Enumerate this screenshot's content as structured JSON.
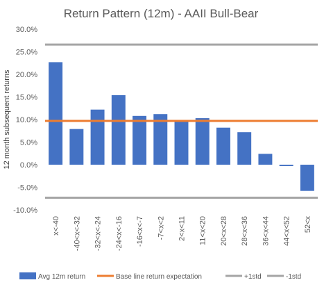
{
  "chart_data": {
    "type": "bar",
    "title": "Return Pattern (12m) - AAII Bull-Bear",
    "xlabel": "",
    "ylabel": "12 month subsequent returns",
    "categories": [
      "x<-40",
      "-40<x<-32",
      "-32<x<-24",
      "-24<x<-16",
      "-16<x<-7",
      "-7<x<2",
      "2<x<11",
      "11<x<20",
      "20<x<28",
      "28<x<36",
      "36<x<44",
      "44<x<52",
      "52<x"
    ],
    "ylim": [
      -10.0,
      30.0
    ],
    "yticks": [
      30.0,
      25.0,
      20.0,
      15.0,
      10.0,
      5.0,
      0.0,
      -5.0,
      -10.0
    ],
    "ytick_labels": [
      "30.0%",
      "25.0%",
      "20.0%",
      "15.0%",
      "10.0%",
      "5.0%",
      "0.0%",
      "-5.0%",
      "-10.0%"
    ],
    "series": [
      {
        "name": "Avg 12m return",
        "kind": "bar",
        "color": "#4472C4",
        "values": [
          22.7,
          7.9,
          12.2,
          15.4,
          10.8,
          11.2,
          9.5,
          10.3,
          8.2,
          7.2,
          2.4,
          -0.3,
          -5.8
        ]
      },
      {
        "name": "Base line return expectation",
        "kind": "hline",
        "color": "#ED7D31",
        "value": 9.7
      },
      {
        "name": "+1std",
        "kind": "hline",
        "color": "#A5A5A5",
        "value": 26.6
      },
      {
        "name": "-1std",
        "kind": "hline",
        "color": "#A5A5A5",
        "value": -7.3
      }
    ],
    "grid": false,
    "legend_position": "bottom"
  }
}
